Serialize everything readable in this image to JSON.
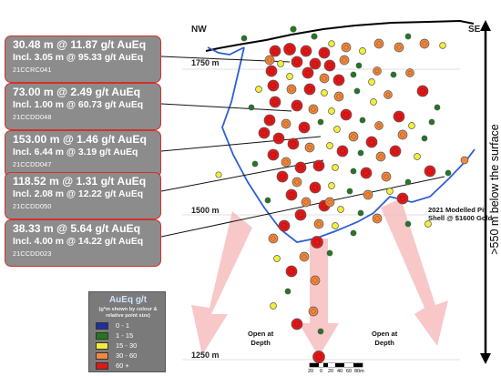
{
  "orientation": {
    "left": "NW",
    "right": "SE"
  },
  "elevations": [
    "1750 m",
    "1500 m",
    "1250 m"
  ],
  "depth_label": ">550 m below the surface",
  "pit_shell_label": [
    "2021 Modelled Pit",
    "Shell @ $1600 Gold"
  ],
  "open_at_depth": [
    "Open at",
    "Depth"
  ],
  "scale_bar": {
    "labels": [
      "20",
      "0",
      "20",
      "40",
      "60",
      "80m"
    ]
  },
  "intercepts": [
    {
      "main": "30.48 m @ 11.87 g/t AuEq",
      "incl": "Incl. 3.05 m @ 95.33 g/t AuEq",
      "hole": "21CCRC041"
    },
    {
      "main": "73.00 m @ 2.49 g/t AuEq",
      "incl": "Incl. 1.00 m @ 60.73 g/t AuEq",
      "hole": "21CCDD048"
    },
    {
      "main": "153.00 m @ 1.46 g/t AuEq",
      "incl": "Incl. 6.44 m @ 3.19 g/t AuEq",
      "hole": "21CCDD047"
    },
    {
      "main": "118.52 m @ 1.31 g/t AuEq",
      "incl": "Incl. 2.08 m @ 12.22 g/t AuEq",
      "hole": "21CCDD050"
    },
    {
      "main": "38.33 m @ 5.64 g/t AuEq",
      "incl": "Incl. 4.00 m @ 14.22 g/t AuEq",
      "hole": "21CCDD023"
    }
  ],
  "legend": {
    "title": "AuEq g/t",
    "subtitle": "(g*m shown by colour & relative point size)",
    "items": [
      {
        "label": "0 - 1",
        "color": "#1f2f9e"
      },
      {
        "label": "1 - 15",
        "color": "#1f7a1f"
      },
      {
        "label": "15 - 30",
        "color": "#f2ee3a"
      },
      {
        "label": "30 - 60",
        "color": "#ef8a3c"
      },
      {
        "label": "60 +",
        "color": "#e01818"
      }
    ]
  },
  "colors": {
    "topography": "#000000",
    "pit_shell": "#2f5fd0",
    "depth_arrow": "#000000",
    "arrow_fill": "#f6b6b6",
    "callout_bg": "#8c8c8c",
    "callout_border": "#d0312d"
  }
}
